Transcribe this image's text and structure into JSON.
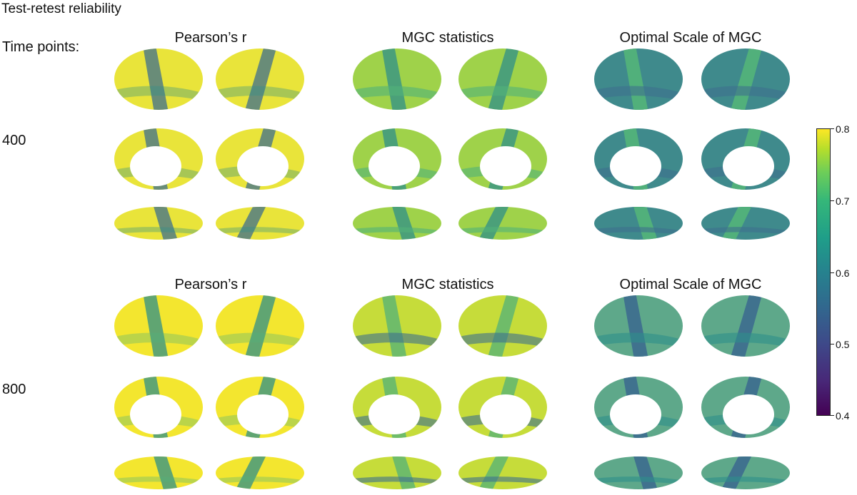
{
  "figure_title": "Test-retest reliability",
  "timepoints_label": "Time points:",
  "rows": [
    {
      "label": "400",
      "columns": [
        "Pearson’s r",
        "MGC statistics",
        "Optimal Scale of MGC"
      ]
    },
    {
      "label": "800",
      "columns": [
        "Pearson’s r",
        "MGC statistics",
        "Optimal Scale of MGC"
      ]
    }
  ],
  "colorbar": {
    "colormap": "viridis",
    "min": 0.4,
    "max": 0.8,
    "ticks": [
      "0.8",
      "0.7",
      "0.6",
      "0.5",
      "0.4"
    ],
    "colors": {
      "low": "#440154",
      "mid": "#26828e",
      "high": "#fde725"
    }
  },
  "panel_tone": [
    [
      "#e9e43a",
      "#9fd24a",
      "#3f8a8c"
    ],
    [
      "#f3e62f",
      "#c6dc3a",
      "#5ea88a"
    ]
  ]
}
